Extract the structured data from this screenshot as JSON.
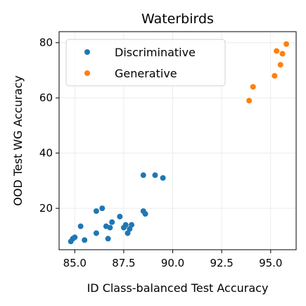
{
  "chart_data": {
    "type": "scatter",
    "title": "Waterbirds",
    "xlabel": "ID Class-balanced Test Accuracy",
    "ylabel": "OOD Test WG Accuracy",
    "xlim": [
      84.2,
      96.3
    ],
    "ylim": [
      5,
      84
    ],
    "xticks": [
      "85.0",
      "87.5",
      "90.0",
      "92.5",
      "95.0"
    ],
    "yticks": [
      "20",
      "40",
      "60",
      "80"
    ],
    "grid": true,
    "legend_position": "top-left",
    "series": [
      {
        "name": "Discriminative",
        "color": "#1f77b4",
        "points": [
          {
            "x": 84.8,
            "y": 8.0
          },
          {
            "x": 84.9,
            "y": 9.0
          },
          {
            "x": 85.0,
            "y": 9.5
          },
          {
            "x": 85.3,
            "y": 13.5
          },
          {
            "x": 85.5,
            "y": 8.5
          },
          {
            "x": 86.1,
            "y": 11.0
          },
          {
            "x": 86.1,
            "y": 19.0
          },
          {
            "x": 86.4,
            "y": 20.0
          },
          {
            "x": 86.6,
            "y": 13.5
          },
          {
            "x": 86.7,
            "y": 9.0
          },
          {
            "x": 86.8,
            "y": 13.0
          },
          {
            "x": 86.9,
            "y": 15.0
          },
          {
            "x": 87.3,
            "y": 17.0
          },
          {
            "x": 87.5,
            "y": 13.0
          },
          {
            "x": 87.6,
            "y": 14.0
          },
          {
            "x": 87.7,
            "y": 11.0
          },
          {
            "x": 87.8,
            "y": 12.5
          },
          {
            "x": 87.9,
            "y": 14.0
          },
          {
            "x": 88.5,
            "y": 19.0
          },
          {
            "x": 88.5,
            "y": 32.0
          },
          {
            "x": 88.6,
            "y": 18.0
          },
          {
            "x": 89.1,
            "y": 32.0
          },
          {
            "x": 89.5,
            "y": 31.0
          }
        ]
      },
      {
        "name": "Generative",
        "color": "#ff7f0e",
        "points": [
          {
            "x": 93.9,
            "y": 59.0
          },
          {
            "x": 94.1,
            "y": 64.0
          },
          {
            "x": 95.2,
            "y": 68.0
          },
          {
            "x": 95.3,
            "y": 77.0
          },
          {
            "x": 95.5,
            "y": 72.0
          },
          {
            "x": 95.6,
            "y": 76.0
          },
          {
            "x": 95.8,
            "y": 79.5
          }
        ]
      }
    ]
  }
}
